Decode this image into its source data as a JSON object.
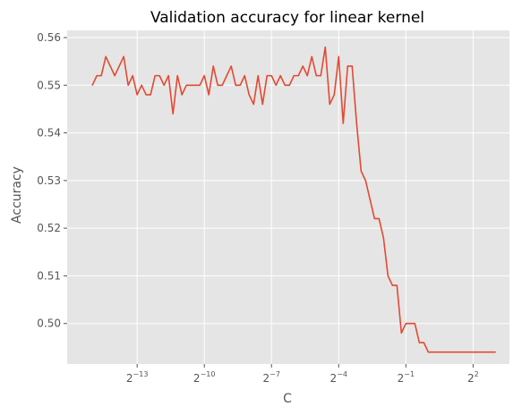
{
  "chart_data": {
    "type": "line",
    "title": "Validation accuracy for linear kernel",
    "xlabel": "C",
    "ylabel": "Accuracy",
    "x_scale": "log2",
    "xlim_log2": [
      -16.125,
      3.625
    ],
    "ylim": [
      0.4915,
      0.5615
    ],
    "grid": true,
    "x_ticks": [
      {
        "base": "2",
        "exp": "−13"
      },
      {
        "base": "2",
        "exp": "−10"
      },
      {
        "base": "2",
        "exp": "−7"
      },
      {
        "base": "2",
        "exp": "−4"
      },
      {
        "base": "2",
        "exp": "−1"
      },
      {
        "base": "2",
        "exp": "2"
      }
    ],
    "x_tick_values_log2": [
      -13,
      -10,
      -7,
      -4,
      -1,
      2
    ],
    "y_ticks": [
      "0.50",
      "0.51",
      "0.52",
      "0.53",
      "0.54",
      "0.55",
      "0.56"
    ],
    "y_tick_values": [
      0.5,
      0.51,
      0.52,
      0.53,
      0.54,
      0.55,
      0.56
    ],
    "series": [
      {
        "color": "#e24a33",
        "x_log2": [
          -15.0,
          -14.8,
          -14.6,
          -14.4,
          -14.2,
          -14.0,
          -13.8,
          -13.6,
          -13.4,
          -13.2,
          -13.0,
          -12.8,
          -12.6,
          -12.4,
          -12.2,
          -12.0,
          -11.8,
          -11.6,
          -11.4,
          -11.2,
          -11.0,
          -10.8,
          -10.6,
          -10.4,
          -10.2,
          -10.0,
          -9.8,
          -9.6,
          -9.4,
          -9.2,
          -9.0,
          -8.8,
          -8.6,
          -8.4,
          -8.2,
          -8.0,
          -7.8,
          -7.6,
          -7.4,
          -7.2,
          -7.0,
          -6.8,
          -6.6,
          -6.4,
          -6.2,
          -6.0,
          -5.8,
          -5.6,
          -5.4,
          -5.2,
          -5.0,
          -4.8,
          -4.6,
          -4.4,
          -4.2,
          -4.0,
          -3.8,
          -3.6,
          -3.4,
          -3.2,
          -3.0,
          -2.8,
          -2.6,
          -2.4,
          -2.2,
          -2.0,
          -1.8,
          -1.6,
          -1.4,
          -1.2,
          -1.0,
          -0.8,
          -0.6,
          -0.4,
          -0.2,
          0.0,
          0.2,
          0.4,
          0.6,
          0.8,
          1.0,
          1.2,
          1.4,
          1.6,
          1.8,
          2.0,
          2.2,
          2.4,
          2.6,
          2.8,
          3.0
        ],
        "values": [
          0.55,
          0.552,
          0.552,
          0.556,
          0.554,
          0.552,
          0.554,
          0.556,
          0.55,
          0.552,
          0.548,
          0.55,
          0.548,
          0.548,
          0.552,
          0.552,
          0.55,
          0.552,
          0.544,
          0.552,
          0.548,
          0.55,
          0.55,
          0.55,
          0.55,
          0.552,
          0.548,
          0.554,
          0.55,
          0.55,
          0.552,
          0.554,
          0.55,
          0.55,
          0.552,
          0.548,
          0.546,
          0.552,
          0.546,
          0.552,
          0.552,
          0.55,
          0.552,
          0.55,
          0.55,
          0.552,
          0.552,
          0.554,
          0.552,
          0.556,
          0.552,
          0.552,
          0.558,
          0.546,
          0.548,
          0.556,
          0.542,
          0.554,
          0.554,
          0.542,
          0.532,
          0.53,
          0.526,
          0.522,
          0.522,
          0.518,
          0.51,
          0.508,
          0.508,
          0.498,
          0.5,
          0.5,
          0.5,
          0.496,
          0.496,
          0.494,
          0.494,
          0.494,
          0.494,
          0.494,
          0.494,
          0.494,
          0.494,
          0.494,
          0.494,
          0.494,
          0.494,
          0.494,
          0.494,
          0.494,
          0.494
        ]
      }
    ]
  }
}
